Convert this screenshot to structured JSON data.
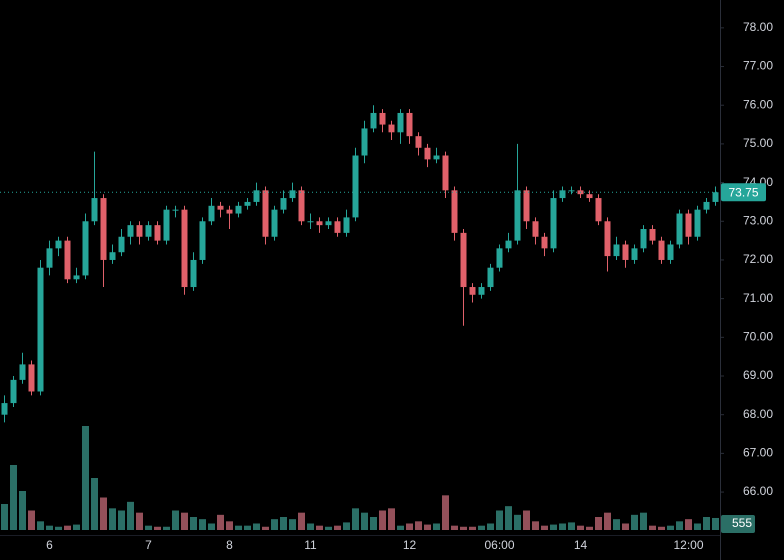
{
  "chart_data": {
    "type": "candlestick",
    "up_color": "#26a69a",
    "down_color": "#e0616a",
    "volume_up_color": "#2b6f66",
    "volume_down_color": "#94505a",
    "ylim": [
      64.89,
      78.72
    ],
    "yticks": [
      {
        "value": 66,
        "label": "66.00"
      },
      {
        "value": 67,
        "label": "67.00"
      },
      {
        "value": 68,
        "label": "68.00"
      },
      {
        "value": 69,
        "label": "69.00"
      },
      {
        "value": 70,
        "label": "70.00"
      },
      {
        "value": 71,
        "label": "71.00"
      },
      {
        "value": 72,
        "label": "72.00"
      },
      {
        "value": 73,
        "label": "73.00"
      },
      {
        "value": 74,
        "label": "74.00"
      },
      {
        "value": 75,
        "label": "75.00"
      },
      {
        "value": 76,
        "label": "76.00"
      },
      {
        "value": 77,
        "label": "77.00"
      },
      {
        "value": 78,
        "label": "78.00"
      }
    ],
    "volume_lim": [
      0,
      4800
    ],
    "categories": [
      null,
      null,
      null,
      null,
      null,
      "6",
      null,
      null,
      null,
      null,
      null,
      null,
      null,
      null,
      null,
      null,
      "7",
      null,
      null,
      null,
      null,
      null,
      null,
      null,
      null,
      "8",
      null,
      null,
      null,
      null,
      null,
      null,
      null,
      null,
      "11",
      null,
      null,
      null,
      null,
      null,
      null,
      null,
      null,
      null,
      null,
      "12",
      null,
      null,
      null,
      null,
      null,
      null,
      null,
      null,
      null,
      "06:00",
      null,
      null,
      null,
      null,
      null,
      null,
      null,
      null,
      "14",
      null,
      null,
      null,
      null,
      null,
      null,
      null,
      null,
      null,
      null,
      null,
      "12:00",
      null,
      null,
      null
    ],
    "candles": [
      [
        68.0,
        68.5,
        67.8,
        68.3
      ],
      [
        68.3,
        69.0,
        68.2,
        68.9
      ],
      [
        68.9,
        69.6,
        68.8,
        69.3
      ],
      [
        69.3,
        69.4,
        68.5,
        68.6
      ],
      [
        68.6,
        72.0,
        68.5,
        71.8
      ],
      [
        71.8,
        72.5,
        71.6,
        72.3
      ],
      [
        72.3,
        72.6,
        72.1,
        72.5
      ],
      [
        72.5,
        72.6,
        71.4,
        71.5
      ],
      [
        71.5,
        71.8,
        71.4,
        71.6
      ],
      [
        71.6,
        73.2,
        71.5,
        73.0
      ],
      [
        73.0,
        74.8,
        72.9,
        73.6
      ],
      [
        73.6,
        73.7,
        71.3,
        72.0
      ],
      [
        72.0,
        72.4,
        71.9,
        72.2
      ],
      [
        72.2,
        72.8,
        72.1,
        72.6
      ],
      [
        72.6,
        73.0,
        72.4,
        72.9
      ],
      [
        72.9,
        73.0,
        72.4,
        72.6
      ],
      [
        72.6,
        73.0,
        72.5,
        72.9
      ],
      [
        72.9,
        73.0,
        72.4,
        72.5
      ],
      [
        72.5,
        73.4,
        72.4,
        73.3
      ],
      [
        73.3,
        73.4,
        73.1,
        73.3
      ],
      [
        73.3,
        73.4,
        71.1,
        71.3
      ],
      [
        71.3,
        72.2,
        71.2,
        72.0
      ],
      [
        72.0,
        73.1,
        71.9,
        73.0
      ],
      [
        73.0,
        73.6,
        72.9,
        73.4
      ],
      [
        73.4,
        73.5,
        73.1,
        73.3
      ],
      [
        73.3,
        73.4,
        72.8,
        73.2
      ],
      [
        73.2,
        73.5,
        73.1,
        73.4
      ],
      [
        73.4,
        73.6,
        73.3,
        73.5
      ],
      [
        73.5,
        74.0,
        73.4,
        73.8
      ],
      [
        73.8,
        73.9,
        72.4,
        72.6
      ],
      [
        72.6,
        73.4,
        72.5,
        73.3
      ],
      [
        73.3,
        73.8,
        73.2,
        73.6
      ],
      [
        73.6,
        74.0,
        73.5,
        73.8
      ],
      [
        73.8,
        73.9,
        72.9,
        73.0
      ],
      [
        73.0,
        73.2,
        72.8,
        73.0
      ],
      [
        73.0,
        73.1,
        72.7,
        72.9
      ],
      [
        72.9,
        73.1,
        72.8,
        73.0
      ],
      [
        73.0,
        73.1,
        72.6,
        72.7
      ],
      [
        72.7,
        73.3,
        72.6,
        73.1
      ],
      [
        73.1,
        74.9,
        73.0,
        74.7
      ],
      [
        74.7,
        75.6,
        74.5,
        75.4
      ],
      [
        75.4,
        76.0,
        75.3,
        75.8
      ],
      [
        75.8,
        75.9,
        75.3,
        75.5
      ],
      [
        75.5,
        75.6,
        75.1,
        75.3
      ],
      [
        75.3,
        75.9,
        75.0,
        75.8
      ],
      [
        75.8,
        75.9,
        75.0,
        75.2
      ],
      [
        75.2,
        75.3,
        74.7,
        74.9
      ],
      [
        74.9,
        75.0,
        74.4,
        74.6
      ],
      [
        74.6,
        74.9,
        74.5,
        74.7
      ],
      [
        74.7,
        74.8,
        73.6,
        73.8
      ],
      [
        73.8,
        73.9,
        72.5,
        72.7
      ],
      [
        72.7,
        72.8,
        70.3,
        71.3
      ],
      [
        71.3,
        71.4,
        70.9,
        71.1
      ],
      [
        71.1,
        71.4,
        71.0,
        71.3
      ],
      [
        71.3,
        71.9,
        71.2,
        71.8
      ],
      [
        71.8,
        72.4,
        71.7,
        72.3
      ],
      [
        72.3,
        72.7,
        72.2,
        72.5
      ],
      [
        72.5,
        75.0,
        72.4,
        73.8
      ],
      [
        73.8,
        73.9,
        72.8,
        73.0
      ],
      [
        73.0,
        73.1,
        72.4,
        72.6
      ],
      [
        72.6,
        72.7,
        72.1,
        72.3
      ],
      [
        72.3,
        73.8,
        72.2,
        73.6
      ],
      [
        73.6,
        73.9,
        73.5,
        73.8
      ],
      [
        73.8,
        73.9,
        73.7,
        73.8
      ],
      [
        73.8,
        73.9,
        73.6,
        73.7
      ],
      [
        73.7,
        73.8,
        73.5,
        73.6
      ],
      [
        73.6,
        73.7,
        72.9,
        73.0
      ],
      [
        73.0,
        73.1,
        71.7,
        72.1
      ],
      [
        72.1,
        72.6,
        72.0,
        72.4
      ],
      [
        72.4,
        72.5,
        71.8,
        72.0
      ],
      [
        72.0,
        72.4,
        71.9,
        72.3
      ],
      [
        72.3,
        72.9,
        72.2,
        72.8
      ],
      [
        72.8,
        72.9,
        72.4,
        72.5
      ],
      [
        72.5,
        72.6,
        71.9,
        72.0
      ],
      [
        72.0,
        72.5,
        71.9,
        72.4
      ],
      [
        72.4,
        73.3,
        72.3,
        73.2
      ],
      [
        73.2,
        73.3,
        72.4,
        72.6
      ],
      [
        72.6,
        73.4,
        72.5,
        73.3
      ],
      [
        73.3,
        73.6,
        73.2,
        73.5
      ],
      [
        73.5,
        73.9,
        73.4,
        73.75
      ]
    ],
    "volume": [
      1200,
      3000,
      1800,
      900,
      400,
      200,
      150,
      200,
      250,
      4800,
      2400,
      1500,
      1000,
      900,
      1300,
      800,
      200,
      150,
      150,
      900,
      800,
      600,
      500,
      300,
      700,
      400,
      200,
      200,
      300,
      150,
      500,
      600,
      500,
      800,
      300,
      200,
      150,
      200,
      350,
      1000,
      800,
      600,
      900,
      1000,
      200,
      300,
      400,
      250,
      300,
      1600,
      200,
      150,
      150,
      200,
      300,
      900,
      1100,
      700,
      900,
      400,
      200,
      250,
      300,
      350,
      200,
      150,
      600,
      800,
      500,
      300,
      700,
      800,
      200,
      150,
      200,
      400,
      500,
      300,
      600,
      555
    ]
  }
}
